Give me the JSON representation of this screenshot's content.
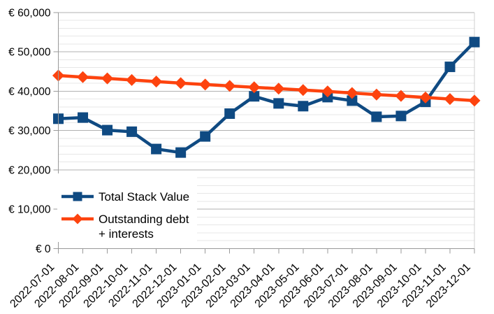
{
  "chart_data": {
    "type": "line",
    "title": "",
    "xlabel": "",
    "ylabel": "",
    "categories": [
      "2022-07-01",
      "2022-08-01",
      "2022-09-01",
      "2022-10-01",
      "2022-11-01",
      "2022-12-01",
      "2023-01-01",
      "2023-02-01",
      "2023-03-01",
      "2023-04-01",
      "2023-05-01",
      "2023-06-01",
      "2023-07-01",
      "2023-08-01",
      "2023-09-01",
      "2023-10-01",
      "2023-11-01",
      "2023-12-01"
    ],
    "series": [
      {
        "name": "Total Stack Value",
        "legend_lines": [
          "Total Stack Value"
        ],
        "marker": "square",
        "color": "#0f4a82",
        "values": [
          33000,
          33300,
          30100,
          29700,
          25300,
          24400,
          28500,
          34300,
          38700,
          36900,
          36200,
          38500,
          37600,
          33500,
          33700,
          37300,
          46200,
          52500
        ]
      },
      {
        "name": "Outstanding debt + interests",
        "legend_lines": [
          "Outstanding debt",
          "+ interests"
        ],
        "marker": "diamond",
        "color": "#fd430e",
        "values": [
          44000,
          43600,
          43250,
          42850,
          42450,
          42050,
          41700,
          41350,
          41000,
          40650,
          40300,
          39950,
          39550,
          39150,
          38800,
          38400,
          38000,
          37600
        ]
      }
    ],
    "y_axis": {
      "min": 0,
      "max": 60000,
      "major_step": 10000,
      "minor_step": 2000,
      "tick_labels": [
        "€ 0",
        "€ 10,000",
        "€ 20,000",
        "€ 30,000",
        "€ 40,000",
        "€ 50,000",
        "€ 60,000"
      ],
      "currency_prefix": "€ "
    },
    "x_axis": {
      "label_rotation_deg": -45
    },
    "legend": {
      "position": "inside-bottom-left"
    },
    "grid": {
      "horizontal_major": true,
      "horizontal_minor": true,
      "vertical": false
    },
    "colors": {
      "background": "#ffffff",
      "text": "#000000",
      "axis": "#999999",
      "major_grid": "#b1b1b1",
      "minor_grid": "#e7e7e7",
      "plot_right_border": "#cfcfcf",
      "legend_background": "#ffffff"
    }
  }
}
